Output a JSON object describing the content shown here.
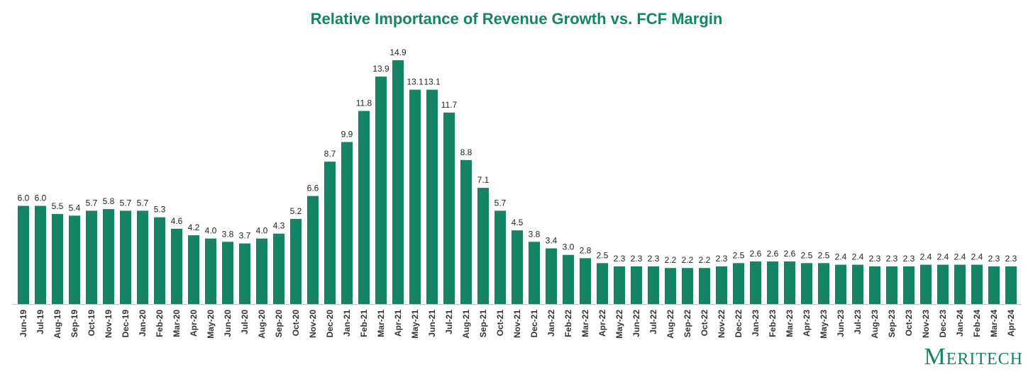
{
  "chart_data": {
    "type": "bar",
    "title": "Relative Importance of Revenue Growth vs. FCF Margin",
    "xlabel": "",
    "ylabel": "",
    "ylim": [
      0,
      14.9
    ],
    "grid": false,
    "color": "#148467",
    "categories": [
      "Jun-19",
      "Jul-19",
      "Aug-19",
      "Sep-19",
      "Oct-19",
      "Nov-19",
      "Dec-19",
      "Jan-20",
      "Feb-20",
      "Mar-20",
      "Apr-20",
      "May-20",
      "Jun-20",
      "Jul-20",
      "Aug-20",
      "Sep-20",
      "Oct-20",
      "Nov-20",
      "Dec-20",
      "Jan-21",
      "Feb-21",
      "Mar-21",
      "Apr-21",
      "May-21",
      "Jun-21",
      "Jul-21",
      "Aug-21",
      "Sep-21",
      "Oct-21",
      "Nov-21",
      "Dec-21",
      "Jan-22",
      "Feb-22",
      "Mar-22",
      "Apr-22",
      "May-22",
      "Jun-22",
      "Jul-22",
      "Aug-22",
      "Sep-22",
      "Oct-22",
      "Nov-22",
      "Dec-22",
      "Jan-23",
      "Feb-23",
      "Mar-23",
      "Apr-23",
      "May-23",
      "Jun-23",
      "Jul-23",
      "Aug-23",
      "Sep-23",
      "Oct-23",
      "Nov-23",
      "Dec-23",
      "Jan-24",
      "Feb-24",
      "Mar-24",
      "Apr-24"
    ],
    "values": [
      6.0,
      6.0,
      5.5,
      5.4,
      5.7,
      5.8,
      5.7,
      5.7,
      5.3,
      4.6,
      4.2,
      4.0,
      3.8,
      3.7,
      4.0,
      4.3,
      5.2,
      6.6,
      8.7,
      9.9,
      11.8,
      13.9,
      14.9,
      13.1,
      13.1,
      11.7,
      8.8,
      7.1,
      5.7,
      4.5,
      3.8,
      3.4,
      3.0,
      2.8,
      2.5,
      2.3,
      2.3,
      2.3,
      2.2,
      2.2,
      2.2,
      2.3,
      2.5,
      2.6,
      2.6,
      2.6,
      2.5,
      2.5,
      2.4,
      2.4,
      2.3,
      2.3,
      2.3,
      2.4,
      2.4,
      2.4,
      2.4,
      2.3,
      2.3
    ]
  },
  "logo": {
    "text": "Meritech"
  }
}
